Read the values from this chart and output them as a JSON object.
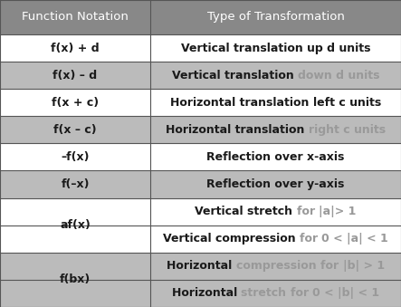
{
  "title_left": "Function Notation",
  "title_right": "Type of Transformation",
  "header_bg": "#888888",
  "col_div": 0.375,
  "rows": [
    {
      "left": "f(x) + d",
      "right": [
        [
          "Vertical translation ",
          "#1a1a1a",
          true
        ],
        [
          "up d units",
          "#1a1a1a",
          true
        ]
      ],
      "bg": "#ffffff",
      "span_start": true,
      "span_end": true
    },
    {
      "left": "f(x) – d",
      "right": [
        [
          "Vertical translation ",
          "#1a1a1a",
          true
        ],
        [
          "down d units",
          "#999999",
          true
        ]
      ],
      "bg": "#bbbbbb",
      "span_start": true,
      "span_end": true
    },
    {
      "left": "f(x + c)",
      "right": [
        [
          "Horizontal translation ",
          "#1a1a1a",
          true
        ],
        [
          "left c units",
          "#1a1a1a",
          true
        ]
      ],
      "bg": "#ffffff",
      "span_start": true,
      "span_end": true
    },
    {
      "left": "f(x – c)",
      "right": [
        [
          "Horizontal translation ",
          "#1a1a1a",
          true
        ],
        [
          "right c units",
          "#999999",
          true
        ]
      ],
      "bg": "#bbbbbb",
      "span_start": true,
      "span_end": true
    },
    {
      "left": "–f(x)",
      "right": [
        [
          "Reflection over x-axis",
          "#1a1a1a",
          true
        ]
      ],
      "bg": "#ffffff",
      "span_start": true,
      "span_end": true
    },
    {
      "left": "f(–x)",
      "right": [
        [
          "Reflection over y-axis",
          "#1a1a1a",
          true
        ]
      ],
      "bg": "#bbbbbb",
      "span_start": true,
      "span_end": true
    },
    {
      "left": "af(x)",
      "right": [
        [
          "Vertical stretch ",
          "#1a1a1a",
          true
        ],
        [
          "for ",
          "#999999",
          true
        ],
        [
          "|a|> 1",
          "#999999",
          true
        ]
      ],
      "bg": "#ffffff",
      "span_start": true,
      "span_end": false
    },
    {
      "left": null,
      "right": [
        [
          "Vertical compression ",
          "#1a1a1a",
          true
        ],
        [
          "for ",
          "#999999",
          true
        ],
        [
          "0 < |a| < 1",
          "#999999",
          true
        ]
      ],
      "bg": "#ffffff",
      "span_start": false,
      "span_end": true
    },
    {
      "left": "f(bx)",
      "right": [
        [
          "Horizontal ",
          "#1a1a1a",
          true
        ],
        [
          "compression ",
          "#999999",
          true
        ],
        [
          "for ",
          "#999999",
          true
        ],
        [
          "|b| > 1",
          "#999999",
          true
        ]
      ],
      "bg": "#bbbbbb",
      "span_start": true,
      "span_end": false
    },
    {
      "left": null,
      "right": [
        [
          "Horizontal ",
          "#1a1a1a",
          true
        ],
        [
          "stretch ",
          "#999999",
          true
        ],
        [
          "for ",
          "#999999",
          true
        ],
        [
          "0 < |b| < 1",
          "#999999",
          true
        ]
      ],
      "bg": "#bbbbbb",
      "span_start": false,
      "span_end": true
    }
  ],
  "fig_width": 4.43,
  "fig_height": 3.39,
  "dpi": 100,
  "fontsize": 9.0,
  "header_fontsize": 9.5
}
